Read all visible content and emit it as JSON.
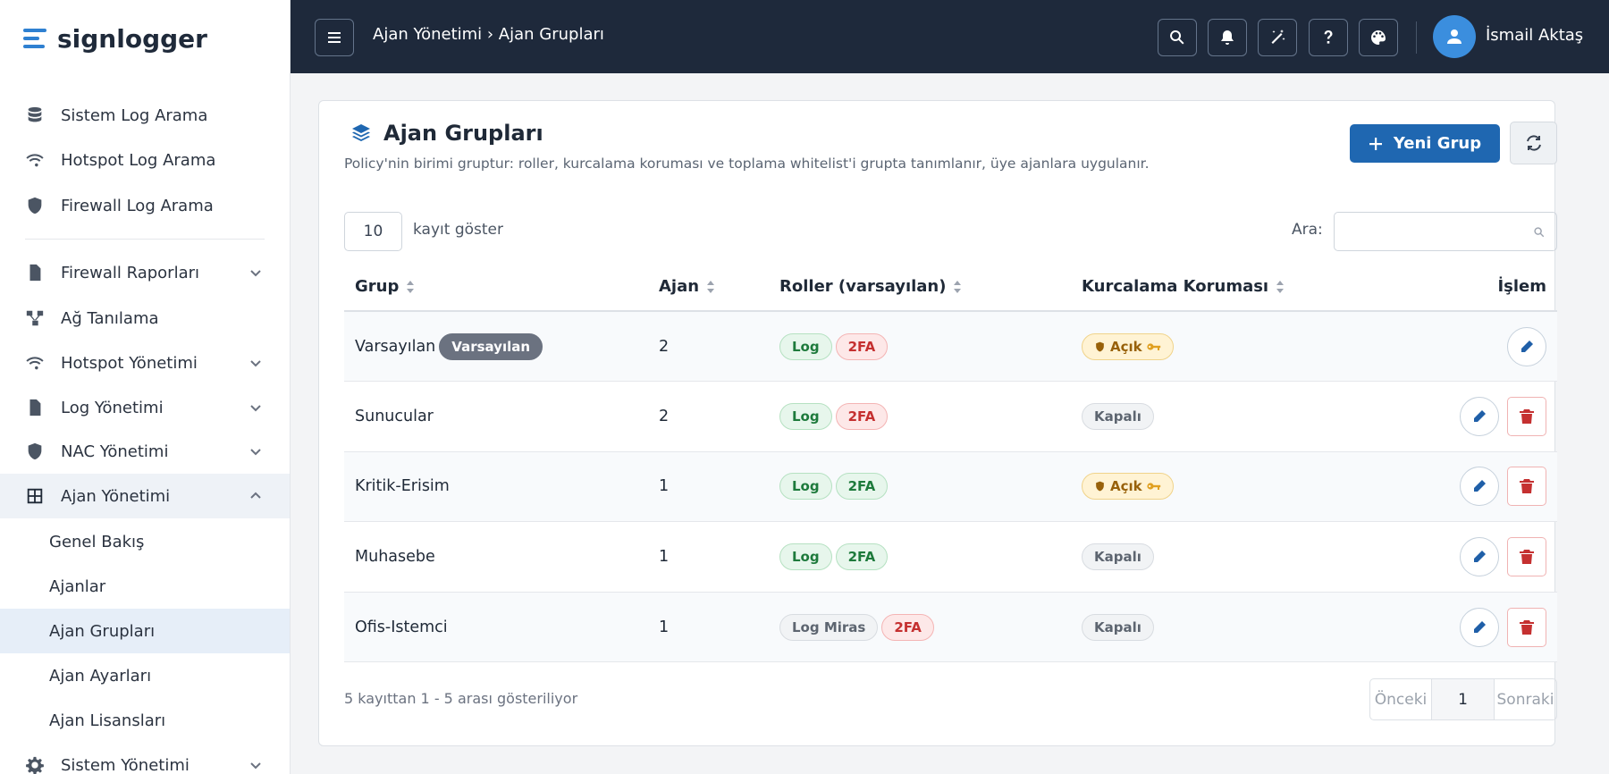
{
  "sidebar": {
    "brand": "signlogger",
    "top_items": [
      "Sistem Log Arama",
      "Hotspot Log Arama",
      "Firewall Log Arama"
    ],
    "items": [
      "Firewall Raporları",
      "Ağ Tanılama",
      "Hotspot Yönetimi",
      "Log Yönetimi",
      "NAC Yönetimi",
      "Ajan Yönetimi"
    ],
    "sub_items": [
      "Genel Bakış",
      "Ajanlar",
      "Ajan Grupları",
      "Ajan Ayarları",
      "Ajan Lisansları"
    ],
    "last_item": "Sistem Yönetimi"
  },
  "topbar": {
    "breadcrumb": "Ajan Yönetimi › Ajan Grupları",
    "user": "İsmail Aktaş"
  },
  "card": {
    "title": "Ajan Grupları",
    "subtitle": "Policy'nin birimi gruptur: roller, kurcalama koruması ve toplama whitelist'i grupta tanımlanır, üye ajanlara uygulanır.",
    "new_button": "Yeni Grup",
    "page_length": 10,
    "length_label": "kayıt göster",
    "search_label": "Ara:"
  },
  "table": {
    "headers": [
      "Grup",
      "Ajan",
      "Roller (varsayılan)",
      "Kurcalama Koruması",
      "İşlem"
    ],
    "rows": [
      {
        "group": "Varsayılan",
        "badge": "Varsayılan",
        "agents": 2,
        "roles": [
          "Log",
          "2FA"
        ],
        "tamper": "Açık"
      },
      {
        "group": "Sunucular",
        "agents": 2,
        "roles": [
          "Log",
          "2FA"
        ],
        "tamper": "Kapalı"
      },
      {
        "group": "Kritik-Erisim",
        "agents": 1,
        "roles": [
          "Log",
          "2FA"
        ],
        "tamper": "Açık"
      },
      {
        "group": "Muhasebe",
        "agents": 1,
        "roles": [
          "Log",
          "2FA"
        ],
        "tamper": "Kapalı"
      },
      {
        "group": "Ofis-Istemci",
        "agents": 1,
        "roles": [
          "Log Miras",
          "2FA"
        ],
        "tamper": "Kapalı"
      }
    ],
    "info": "5 kayıttan 1 - 5 arası gösteriliyor",
    "pagination": {
      "prev": "Önceki",
      "page": 1,
      "next": "Sonraki"
    }
  }
}
